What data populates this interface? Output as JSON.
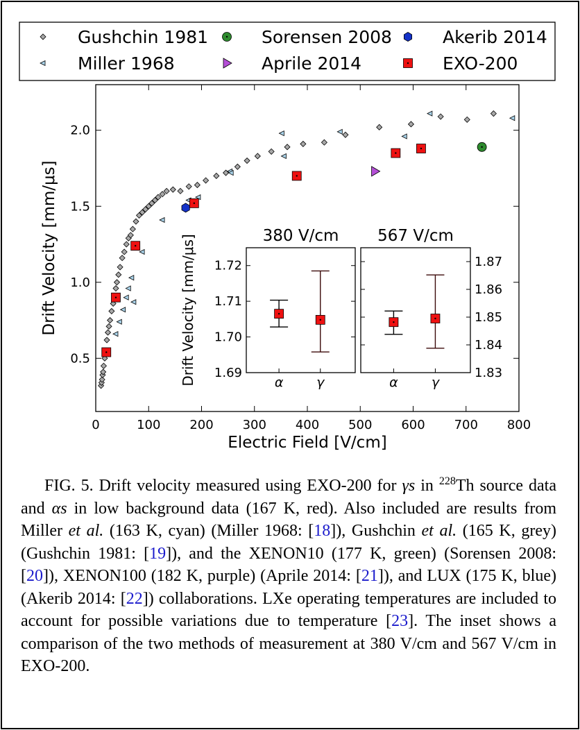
{
  "chart_data": [
    {
      "type": "scatter",
      "xlabel": "Electric Field [V/cm]",
      "ylabel": "Drift Velocity [mm/μs]",
      "xlim": [
        0,
        800
      ],
      "ylim": [
        0.15,
        2.3
      ],
      "x_ticks": [
        0,
        100,
        200,
        300,
        400,
        500,
        600,
        700,
        800
      ],
      "y_ticks": [
        0.5,
        1.0,
        1.5,
        2.0
      ],
      "grid": false,
      "legend_position": "top, above plot, 3 columns",
      "series": [
        {
          "name": "Gushchin 1981",
          "marker": "diamond",
          "color": "#a8a8a8",
          "points": [
            [
              10,
              0.32
            ],
            [
              11,
              0.34
            ],
            [
              12,
              0.36
            ],
            [
              13,
              0.39
            ],
            [
              14,
              0.41
            ],
            [
              15,
              0.45
            ],
            [
              17,
              0.5
            ],
            [
              19,
              0.55
            ],
            [
              21,
              0.62
            ],
            [
              23,
              0.67
            ],
            [
              25,
              0.71
            ],
            [
              27,
              0.75
            ],
            [
              30,
              0.81
            ],
            [
              33,
              0.86
            ],
            [
              36,
              0.91
            ],
            [
              38,
              0.96
            ],
            [
              40,
              1.0
            ],
            [
              43,
              1.05
            ],
            [
              46,
              1.1
            ],
            [
              50,
              1.16
            ],
            [
              54,
              1.2
            ],
            [
              58,
              1.25
            ],
            [
              62,
              1.29
            ],
            [
              66,
              1.31
            ],
            [
              70,
              1.35
            ],
            [
              76,
              1.4
            ],
            [
              82,
              1.44
            ],
            [
              88,
              1.46
            ],
            [
              94,
              1.48
            ],
            [
              100,
              1.5
            ],
            [
              106,
              1.52
            ],
            [
              112,
              1.54
            ],
            [
              118,
              1.56
            ],
            [
              126,
              1.58
            ],
            [
              134,
              1.6
            ],
            [
              146,
              1.61
            ],
            [
              160,
              1.6
            ],
            [
              176,
              1.63
            ],
            [
              192,
              1.64
            ],
            [
              208,
              1.67
            ],
            [
              228,
              1.7
            ],
            [
              246,
              1.72
            ],
            [
              268,
              1.76
            ],
            [
              286,
              1.8
            ],
            [
              306,
              1.83
            ],
            [
              332,
              1.86
            ],
            [
              362,
              1.89
            ],
            [
              392,
              1.91
            ],
            [
              432,
              1.92
            ],
            [
              472,
              1.97
            ],
            [
              536,
              2.02
            ],
            [
              596,
              2.04
            ],
            [
              652,
              2.09
            ],
            [
              702,
              2.07
            ],
            [
              752,
              2.11
            ]
          ]
        },
        {
          "name": "Miller 1968",
          "marker": "triangle-left",
          "color": "#a9d3ea",
          "points": [
            [
              38,
              0.66
            ],
            [
              45,
              0.74
            ],
            [
              52,
              0.82
            ],
            [
              58,
              0.9
            ],
            [
              62,
              0.96
            ],
            [
              68,
              1.03
            ],
            [
              72,
              0.87
            ],
            [
              88,
              1.2
            ],
            [
              126,
              1.41
            ],
            [
              176,
              1.54
            ],
            [
              194,
              1.56
            ],
            [
              254,
              1.73
            ],
            [
              256,
              1.72
            ],
            [
              352,
              1.98
            ],
            [
              356,
              1.83
            ],
            [
              462,
              1.99
            ],
            [
              584,
              1.96
            ],
            [
              632,
              2.11
            ],
            [
              788,
              2.08
            ]
          ]
        },
        {
          "name": "Sorensen 2008",
          "marker": "circle",
          "color": "#2e8b2e",
          "points": [
            [
              730,
              1.89
            ]
          ]
        },
        {
          "name": "Aprile 2014",
          "marker": "triangle-right",
          "color": "#b44fd6",
          "points": [
            [
              528,
              1.73
            ]
          ]
        },
        {
          "name": "Akerib 2014",
          "marker": "hexagon",
          "color": "#1432c8",
          "points": [
            [
              170,
              1.49
            ]
          ]
        },
        {
          "name": "EXO-200",
          "marker": "square",
          "color": "#ee1111",
          "points": [
            [
              20,
              0.54
            ],
            [
              38,
              0.9
            ],
            [
              75,
              1.24
            ],
            [
              186,
              1.52
            ],
            [
              380,
              1.7
            ],
            [
              567,
              1.85
            ],
            [
              615,
              1.88
            ]
          ]
        }
      ]
    },
    {
      "type": "scatter",
      "title": "380 V/cm",
      "ylabel": "Drift Velocity [mm/μs]",
      "ylim": [
        1.69,
        1.725
      ],
      "y_ticks": [
        1.69,
        1.7,
        1.71,
        1.72
      ],
      "categories": [
        "α",
        "γ"
      ],
      "values": [
        1.7065,
        1.7048
      ],
      "err_low": [
        1.7028,
        1.6958
      ],
      "err_high": [
        1.7103,
        1.7185
      ]
    },
    {
      "type": "scatter",
      "title": "567 V/cm",
      "ylim": [
        1.83,
        1.875
      ],
      "y_ticks": [
        1.83,
        1.84,
        1.85,
        1.86,
        1.87
      ],
      "categories": [
        "α",
        "γ"
      ],
      "values": [
        1.8482,
        1.8495
      ],
      "err_low": [
        1.8438,
        1.8388
      ],
      "err_high": [
        1.8522,
        1.8652
      ]
    }
  ],
  "caption": {
    "label": "FIG. 5.",
    "t1": " Drift velocity measured using EXO-200 for ",
    "gamma_s": "γs",
    "t2": " in ",
    "iso_mass": "228",
    "iso_el": "Th",
    "t3": " source data and ",
    "alpha_s": "αs",
    "t4": " in low background data (167 K, red). Also included are results from Miller ",
    "etal1": "et al.",
    "t5": " (163 K, cyan) (Miller 1968: [",
    "ref18": "18",
    "t6": "]), Gushchin ",
    "etal2": "et al.",
    "t7": " (165 K, grey) (Gushchin 1981: [",
    "ref19": "19",
    "t8": "]), and the XENON10 (177 K, green) (Sorensen 2008: [",
    "ref20": "20",
    "t9": "]), XENON100 (182 K, purple) (Aprile 2014: [",
    "ref21": "21",
    "t10": "]), and LUX (175 K, blue) (Akerib 2014: [",
    "ref22": "22",
    "t11": "]) collaborations. LXe operating temperatures are included to account for possible variations due to temperature [",
    "ref23": "23",
    "t12": "]. The inset shows a comparison of the two methods of measurement at 380 V/cm and 567 V/cm in EXO-200."
  }
}
